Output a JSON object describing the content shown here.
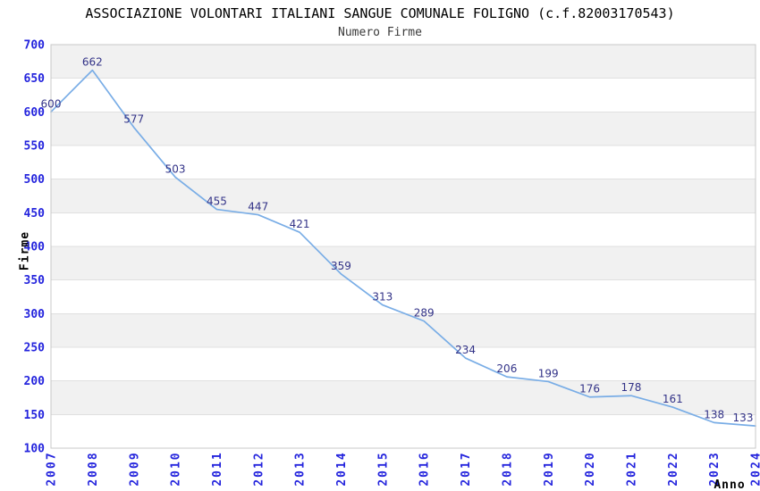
{
  "chart_data": {
    "type": "line",
    "title": "ASSOCIAZIONE VOLONTARI ITALIANI SANGUE COMUNALE FOLIGNO (c.f.82003170543)",
    "subtitle": "Numero Firme",
    "xlabel": "Anno",
    "ylabel": "Firme",
    "categories": [
      "2007",
      "2008",
      "2009",
      "2010",
      "2011",
      "2012",
      "2013",
      "2014",
      "2015",
      "2016",
      "2017",
      "2018",
      "2019",
      "2020",
      "2021",
      "2022",
      "2023",
      "2024"
    ],
    "values": [
      600,
      662,
      577,
      503,
      455,
      447,
      421,
      359,
      313,
      289,
      234,
      206,
      199,
      176,
      178,
      161,
      138,
      133
    ],
    "ylim": [
      100,
      700
    ],
    "ytick_step": 50,
    "grid": true,
    "banding": "alternating horizontal 50-unit bands, gray topmost",
    "legend": "none",
    "colors": {
      "line": "#79ade6",
      "tick_label": "#2424dd",
      "data_label": "#333388",
      "band": "#f1f1f1",
      "gridline": "#e0e0e0",
      "frame": "#c8c8c8"
    }
  }
}
